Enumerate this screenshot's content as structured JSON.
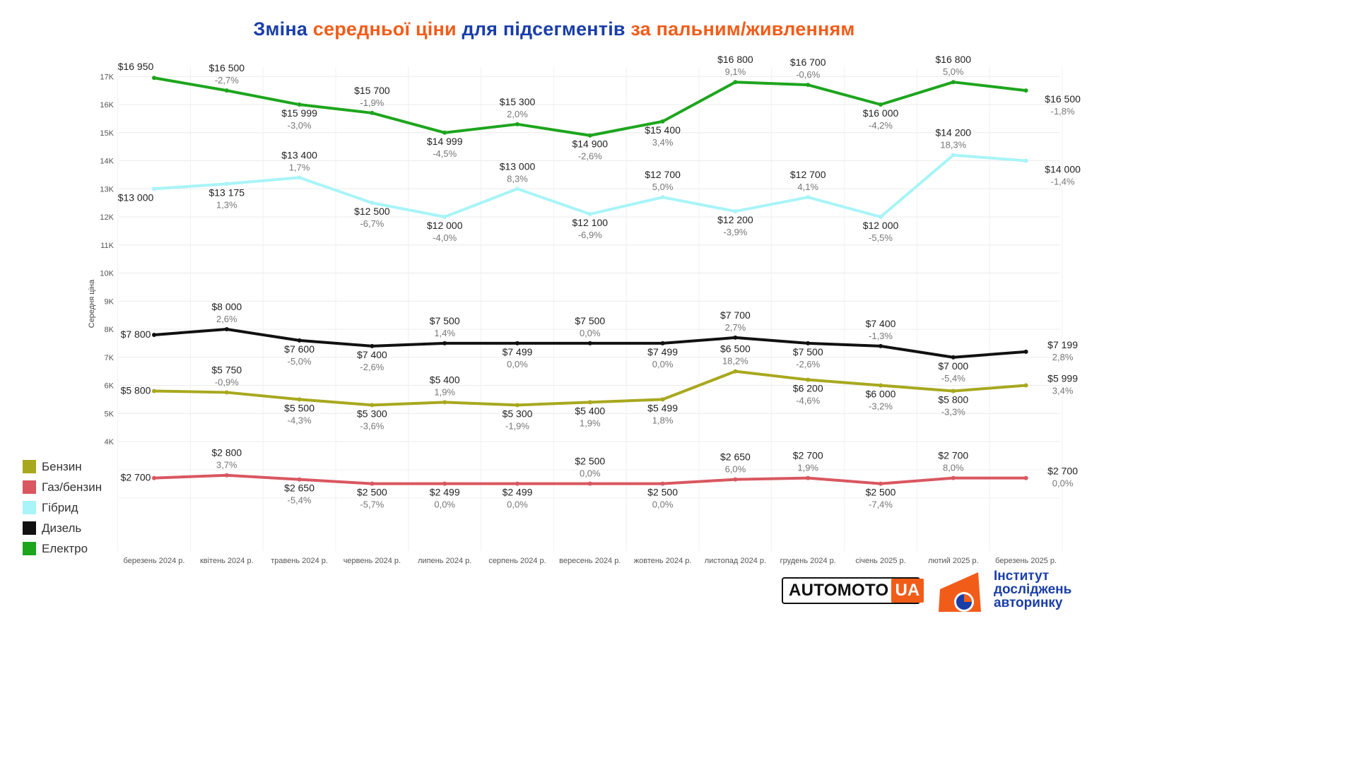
{
  "title": {
    "parts": [
      {
        "text": "Зміна ",
        "color": "blue"
      },
      {
        "text": "середньої ціни",
        "color": "orange"
      },
      {
        "text": " для підсегментів ",
        "color": "blue"
      },
      {
        "text": "за пальним/живленням",
        "color": "orange"
      }
    ]
  },
  "logos": {
    "automoto_left": "AUTOMOTO",
    "automoto_right": "UA",
    "institute_line1": "Інститут",
    "institute_line2": "досліджень",
    "institute_line3": "авторинку"
  },
  "chart_data": {
    "type": "line",
    "ylabel": "Середня ціна",
    "y_ticks": [
      {
        "value": 4000,
        "label": "4K"
      },
      {
        "value": 5000,
        "label": "5K"
      },
      {
        "value": 6000,
        "label": "6K"
      },
      {
        "value": 7000,
        "label": "7K"
      },
      {
        "value": 8000,
        "label": "8K"
      },
      {
        "value": 9000,
        "label": "9K"
      },
      {
        "value": 10000,
        "label": "10K"
      },
      {
        "value": 11000,
        "label": "11K"
      },
      {
        "value": 12000,
        "label": "12K"
      },
      {
        "value": 13000,
        "label": "13K"
      },
      {
        "value": 14000,
        "label": "14K"
      },
      {
        "value": 15000,
        "label": "15K"
      },
      {
        "value": 16000,
        "label": "16K"
      },
      {
        "value": 17000,
        "label": "17K"
      }
    ],
    "categories": [
      "березень 2024 р.",
      "квітень 2024 р.",
      "травень 2024 р.",
      "червень 2024 р.",
      "липень 2024 р.",
      "серпень 2024 р.",
      "вересень 2024 р.",
      "жовтень 2024 р.",
      "листопад 2024 р.",
      "грудень 2024 р.",
      "січень 2025 р.",
      "лютий 2025 р.",
      "березень 2025 р."
    ],
    "legend_position": "bottom-left",
    "grid": true,
    "series": [
      {
        "name": "Бензин",
        "color": "#a8a81e",
        "values": [
          5800,
          5750,
          5500,
          5300,
          5400,
          5300,
          5400,
          5499,
          6500,
          6200,
          6000,
          5800,
          5999
        ],
        "price_labels": [
          "$5 800",
          "$5 750",
          "$5 500",
          "$5 300",
          "$5 400",
          "$5 300",
          "$5 400",
          "$5 499",
          "$6 500",
          "$6 200",
          "$6 000",
          "$5 800",
          "$5 999"
        ],
        "change_labels": [
          "",
          "-0,9%",
          "-4,3%",
          "-3,6%",
          "1,9%",
          "-1,9%",
          "1,9%",
          "1,8%",
          "18,2%",
          "-4,6%",
          "-3,2%",
          "-3,3%",
          "3,4%"
        ]
      },
      {
        "name": "Газ/бензин",
        "color": "#d95760",
        "values": [
          2700,
          2800,
          2650,
          2500,
          2499,
          2499,
          2500,
          2500,
          2650,
          2700,
          2500,
          2700,
          2700
        ],
        "price_labels": [
          "$2 700",
          "$2 800",
          "$2 650",
          "$2 500",
          "$2 499",
          "$2 499",
          "$2 500",
          "$2 500",
          "$2 650",
          "$2 700",
          "$2 500",
          "$2 700",
          "$2 700"
        ],
        "change_labels": [
          "",
          "3,7%",
          "-5,4%",
          "-5,7%",
          "0,0%",
          "0,0%",
          "0,0%",
          "0,0%",
          "6,0%",
          "1,9%",
          "-7,4%",
          "8,0%",
          "0,0%"
        ]
      },
      {
        "name": "Гібрид",
        "color": "#a8f4f8",
        "values": [
          13000,
          13175,
          13400,
          12500,
          12000,
          13000,
          12100,
          12700,
          12200,
          12700,
          12000,
          14200,
          14000
        ],
        "price_labels": [
          "$13 000",
          "$13 175",
          "$13 400",
          "$12 500",
          "$12 000",
          "$13 000",
          "$12 100",
          "$12 700",
          "$12 200",
          "$12 700",
          "$12 000",
          "$14 200",
          "$14 000"
        ],
        "change_labels": [
          "",
          "1,3%",
          "1,7%",
          "-6,7%",
          "-4,0%",
          "8,3%",
          "-6,9%",
          "5,0%",
          "-3,9%",
          "4,1%",
          "-5,5%",
          "18,3%",
          "-1,4%"
        ]
      },
      {
        "name": "Дизель",
        "color": "#111111",
        "values": [
          7800,
          8000,
          7600,
          7400,
          7500,
          7499,
          7500,
          7499,
          7700,
          7500,
          7400,
          7000,
          7199
        ],
        "price_labels": [
          "$7 800",
          "$8 000",
          "$7 600",
          "$7 400",
          "$7 500",
          "$7 499",
          "$7 500",
          "$7 499",
          "$7 700",
          "$7 500",
          "$7 400",
          "$7 000",
          "$7 199"
        ],
        "change_labels": [
          "",
          "2,6%",
          "-5,0%",
          "-2,6%",
          "1,4%",
          "0,0%",
          "0,0%",
          "0,0%",
          "2,7%",
          "-2,6%",
          "-1,3%",
          "-5,4%",
          "2,8%"
        ]
      },
      {
        "name": "Електро",
        "color": "#1da51d",
        "values": [
          16950,
          16500,
          15999,
          15700,
          14999,
          15300,
          14900,
          15400,
          16800,
          16700,
          16000,
          16800,
          16500
        ],
        "price_labels": [
          "$16 950",
          "$16 500",
          "$15 999",
          "$15 700",
          "$14 999",
          "$15 300",
          "$14 900",
          "$15 400",
          "$16 800",
          "$16 700",
          "$16 000",
          "$16 800",
          "$16 500"
        ],
        "change_labels": [
          "",
          "-2,7%",
          "-3,0%",
          "-1,9%",
          "-4,5%",
          "2,0%",
          "-2,6%",
          "3,4%",
          "9,1%",
          "-0,6%",
          "-4,2%",
          "5,0%",
          "-1,8%"
        ]
      }
    ]
  }
}
